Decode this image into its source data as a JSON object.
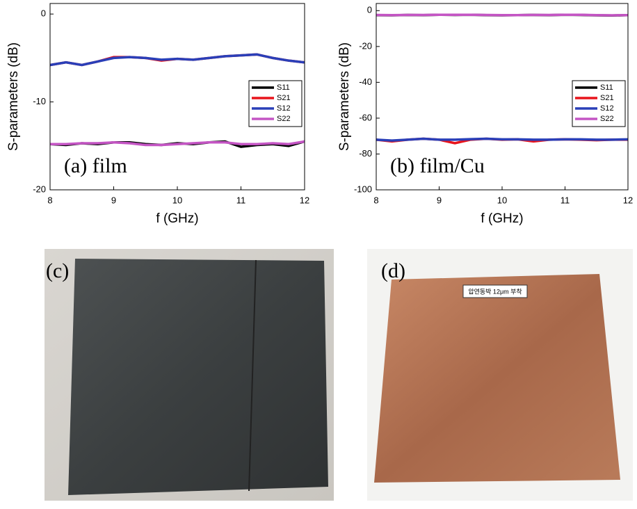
{
  "chart_data": [
    {
      "type": "line",
      "annotation": "(a) film",
      "y_label": "S-parameters (dB)",
      "x_label": "f (GHz)",
      "x": [
        8,
        8.25,
        8.5,
        8.75,
        9,
        9.25,
        9.5,
        9.75,
        10,
        10.25,
        10.5,
        10.75,
        11,
        11.25,
        11.5,
        11.75,
        12
      ],
      "xlim": [
        8,
        12
      ],
      "xticks": [
        8,
        9,
        10,
        11,
        12
      ],
      "ylim": [
        -20,
        1.2
      ],
      "yticks": [
        0,
        -10,
        -20
      ],
      "grid": false,
      "legend": "right",
      "series": [
        {
          "name": "S11",
          "color": "#000000",
          "values": [
            -14.8,
            -14.9,
            -14.7,
            -14.8,
            -14.6,
            -14.6,
            -14.8,
            -14.9,
            -14.7,
            -14.8,
            -14.6,
            -14.5,
            -15.1,
            -14.9,
            -14.8,
            -15.0,
            -14.5
          ]
        },
        {
          "name": "S21",
          "color": "#e8141c",
          "values": [
            -5.8,
            -5.5,
            -5.8,
            -5.4,
            -4.9,
            -4.9,
            -5.0,
            -5.3,
            -5.1,
            -5.2,
            -5.0,
            -4.8,
            -4.7,
            -4.6,
            -5.0,
            -5.3,
            -5.5
          ]
        },
        {
          "name": "S12",
          "color": "#2a3fb8",
          "values": [
            -5.8,
            -5.5,
            -5.8,
            -5.4,
            -5.0,
            -4.9,
            -5.0,
            -5.2,
            -5.1,
            -5.2,
            -5.0,
            -4.8,
            -4.7,
            -4.6,
            -5.0,
            -5.3,
            -5.5
          ]
        },
        {
          "name": "S22",
          "color": "#c455c4",
          "values": [
            -14.8,
            -14.8,
            -14.7,
            -14.7,
            -14.6,
            -14.7,
            -14.9,
            -14.9,
            -14.8,
            -14.7,
            -14.6,
            -14.6,
            -14.8,
            -14.8,
            -14.7,
            -14.8,
            -14.5
          ]
        }
      ]
    },
    {
      "type": "line",
      "annotation": "(b) film/Cu",
      "y_label": "S-parameters (dB)",
      "x_label": "f (GHz)",
      "x": [
        8,
        8.25,
        8.5,
        8.75,
        9,
        9.25,
        9.5,
        9.75,
        10,
        10.25,
        10.5,
        10.75,
        11,
        11.25,
        11.5,
        11.75,
        12
      ],
      "xlim": [
        8,
        12
      ],
      "xticks": [
        8,
        9,
        10,
        11,
        12
      ],
      "ylim": [
        -100,
        4
      ],
      "yticks": [
        0,
        -20,
        -40,
        -60,
        -80,
        -100
      ],
      "grid": false,
      "legend": "right",
      "series": [
        {
          "name": "S11",
          "color": "#000000",
          "values": [
            -2.5,
            -2.6,
            -2.4,
            -2.5,
            -2.3,
            -2.4,
            -2.3,
            -2.5,
            -2.6,
            -2.5,
            -2.4,
            -2.5,
            -2.3,
            -2.4,
            -2.6,
            -2.7,
            -2.5
          ]
        },
        {
          "name": "S21",
          "color": "#e8141c",
          "values": [
            -72,
            -73,
            -72,
            -71.5,
            -72,
            -74,
            -72,
            -71.5,
            -72,
            -71.8,
            -73,
            -72,
            -71.8,
            -72,
            -72.3,
            -72,
            -72
          ]
        },
        {
          "name": "S12",
          "color": "#2a3fb8",
          "values": [
            -72,
            -72.5,
            -72,
            -71.5,
            -72,
            -72,
            -71.7,
            -71.5,
            -71.8,
            -71.8,
            -72,
            -72,
            -71.8,
            -71.8,
            -72,
            -72,
            -71.8
          ]
        },
        {
          "name": "S22",
          "color": "#c455c4",
          "values": [
            -2.4,
            -2.5,
            -2.4,
            -2.4,
            -2.3,
            -2.3,
            -2.3,
            -2.4,
            -2.5,
            -2.5,
            -2.4,
            -2.4,
            -2.3,
            -2.3,
            -2.5,
            -2.6,
            -2.5
          ]
        }
      ]
    }
  ],
  "panels": [
    {
      "label": "(c)"
    },
    {
      "label": "(d)",
      "sticker": "압연동박 12μm 부착"
    }
  ]
}
